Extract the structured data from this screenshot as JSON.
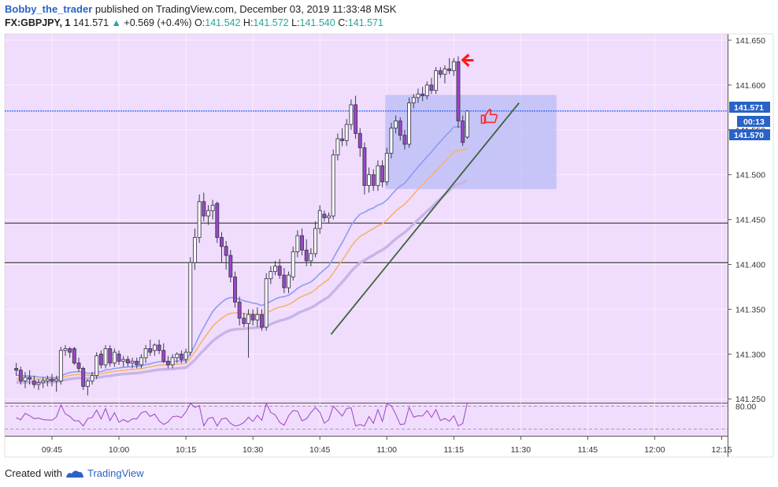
{
  "header": {
    "author": "Bobby_the_trader",
    "published": "published on TradingView.com, December 03, 2019 11:33:48 MSK",
    "symbol": "FX:GBPJPY, 1",
    "last": "141.571",
    "change": "+0.569 (+0.4%)",
    "o_label": "O:",
    "o": "141.542",
    "h_label": "H:",
    "h": "141.572",
    "l_label": "L:",
    "l": "141.540",
    "c_label": "C:",
    "c": "141.571"
  },
  "footer": {
    "created_with": "Created with",
    "brand": "TradingView"
  },
  "price_tags": {
    "last": "141.571",
    "countdown": "00:13",
    "bid": "141.570"
  },
  "colors": {
    "background": "#f0dcfc",
    "bull": "#ffffff",
    "bear": "#9c45c8",
    "ema_fast": "#8c9cf0",
    "ema_mid": "#f5b46e",
    "ema_slow": "#c8b4e6",
    "price_line": "#2962ff",
    "trendline": "#3c643c",
    "zone": "#b9bcf7"
  },
  "chart_data": {
    "type": "candlestick",
    "symbol": "FX:GBPJPY",
    "interval": "1",
    "y_ticks": [
      "141.650",
      "141.600",
      "141.550",
      "141.500",
      "141.450",
      "141.400",
      "141.350",
      "141.300",
      "141.250"
    ],
    "y_range": [
      141.24,
      141.665
    ],
    "x_ticks": [
      {
        "label": "09:45",
        "t": 0
      },
      {
        "label": "10:00",
        "t": 15
      },
      {
        "label": "10:15",
        "t": 30
      },
      {
        "label": "10:30",
        "t": 45
      },
      {
        "label": "10:45",
        "t": 60
      },
      {
        "label": "11:00",
        "t": 75
      },
      {
        "label": "11:15",
        "t": 90
      },
      {
        "label": "11:30",
        "t": 105
      },
      {
        "label": "11:45",
        "t": 120
      },
      {
        "label": "12:00",
        "t": 135
      },
      {
        "label": "12:15",
        "t": 150
      }
    ],
    "note_x": "t = minutes after 09:45",
    "horizontal_lines": [
      141.446,
      141.402
    ],
    "last_price": 141.571,
    "zone": {
      "t_start": 75,
      "t_end": 113,
      "low": 141.484,
      "high": 141.589
    },
    "trendline": {
      "t1": 62.5,
      "p1": 141.322,
      "t2": 104.6,
      "p2": 141.58
    },
    "candles": [
      {
        "t": -8,
        "o": 141.284,
        "h": 141.29,
        "l": 141.276,
        "c": 141.282
      },
      {
        "t": -7,
        "o": 141.282,
        "h": 141.286,
        "l": 141.266,
        "c": 141.27
      },
      {
        "t": -6,
        "o": 141.27,
        "h": 141.28,
        "l": 141.262,
        "c": 141.274
      },
      {
        "t": -5,
        "o": 141.274,
        "h": 141.282,
        "l": 141.266,
        "c": 141.272
      },
      {
        "t": -4,
        "o": 141.27,
        "h": 141.276,
        "l": 141.262,
        "c": 141.266
      },
      {
        "t": -3,
        "o": 141.266,
        "h": 141.272,
        "l": 141.26,
        "c": 141.268
      },
      {
        "t": -2,
        "o": 141.268,
        "h": 141.274,
        "l": 141.262,
        "c": 141.27
      },
      {
        "t": -1,
        "o": 141.27,
        "h": 141.276,
        "l": 141.264,
        "c": 141.272
      },
      {
        "t": 0,
        "o": 141.272,
        "h": 141.278,
        "l": 141.264,
        "c": 141.27
      },
      {
        "t": 1,
        "o": 141.27,
        "h": 141.276,
        "l": 141.258,
        "c": 141.272
      },
      {
        "t": 2,
        "o": 141.27,
        "h": 141.308,
        "l": 141.266,
        "c": 141.304
      },
      {
        "t": 3,
        "o": 141.304,
        "h": 141.31,
        "l": 141.298,
        "c": 141.306
      },
      {
        "t": 4,
        "o": 141.306,
        "h": 141.308,
        "l": 141.296,
        "c": 141.302
      },
      {
        "t": 5,
        "o": 141.306,
        "h": 141.308,
        "l": 141.288,
        "c": 141.29
      },
      {
        "t": 6,
        "o": 141.29,
        "h": 141.296,
        "l": 141.28,
        "c": 141.284
      },
      {
        "t": 7,
        "o": 141.284,
        "h": 141.286,
        "l": 141.26,
        "c": 141.264
      },
      {
        "t": 8,
        "o": 141.264,
        "h": 141.272,
        "l": 141.254,
        "c": 141.27
      },
      {
        "t": 9,
        "o": 141.27,
        "h": 141.28,
        "l": 141.266,
        "c": 141.276
      },
      {
        "t": 10,
        "o": 141.276,
        "h": 141.302,
        "l": 141.272,
        "c": 141.298
      },
      {
        "t": 11,
        "o": 141.3,
        "h": 141.304,
        "l": 141.284,
        "c": 141.288
      },
      {
        "t": 12,
        "o": 141.288,
        "h": 141.31,
        "l": 141.284,
        "c": 141.306
      },
      {
        "t": 13,
        "o": 141.306,
        "h": 141.31,
        "l": 141.286,
        "c": 141.29
      },
      {
        "t": 14,
        "o": 141.29,
        "h": 141.306,
        "l": 141.286,
        "c": 141.302
      },
      {
        "t": 15,
        "o": 141.3,
        "h": 141.304,
        "l": 141.288,
        "c": 141.292
      },
      {
        "t": 16,
        "o": 141.292,
        "h": 141.298,
        "l": 141.286,
        "c": 141.294
      },
      {
        "t": 17,
        "o": 141.294,
        "h": 141.298,
        "l": 141.286,
        "c": 141.29
      },
      {
        "t": 18,
        "o": 141.29,
        "h": 141.296,
        "l": 141.284,
        "c": 141.292
      },
      {
        "t": 19,
        "o": 141.292,
        "h": 141.296,
        "l": 141.284,
        "c": 141.288
      },
      {
        "t": 20,
        "o": 141.288,
        "h": 141.3,
        "l": 141.284,
        "c": 141.296
      },
      {
        "t": 21,
        "o": 141.296,
        "h": 141.31,
        "l": 141.29,
        "c": 141.306
      },
      {
        "t": 22,
        "o": 141.306,
        "h": 141.316,
        "l": 141.298,
        "c": 141.302
      },
      {
        "t": 23,
        "o": 141.304,
        "h": 141.312,
        "l": 141.298,
        "c": 141.31
      },
      {
        "t": 24,
        "o": 141.31,
        "h": 141.316,
        "l": 141.3,
        "c": 141.304
      },
      {
        "t": 25,
        "o": 141.304,
        "h": 141.312,
        "l": 141.29,
        "c": 141.292
      },
      {
        "t": 26,
        "o": 141.292,
        "h": 141.298,
        "l": 141.284,
        "c": 141.288
      },
      {
        "t": 27,
        "o": 141.288,
        "h": 141.3,
        "l": 141.284,
        "c": 141.296
      },
      {
        "t": 28,
        "o": 141.296,
        "h": 141.302,
        "l": 141.29,
        "c": 141.3
      },
      {
        "t": 29,
        "o": 141.3,
        "h": 141.304,
        "l": 141.29,
        "c": 141.294
      },
      {
        "t": 30,
        "o": 141.294,
        "h": 141.306,
        "l": 141.29,
        "c": 141.302
      },
      {
        "t": 31,
        "o": 141.302,
        "h": 141.408,
        "l": 141.298,
        "c": 141.402
      },
      {
        "t": 32,
        "o": 141.402,
        "h": 141.44,
        "l": 141.394,
        "c": 141.43
      },
      {
        "t": 33,
        "o": 141.43,
        "h": 141.478,
        "l": 141.424,
        "c": 141.47
      },
      {
        "t": 34,
        "o": 141.47,
        "h": 141.48,
        "l": 141.448,
        "c": 141.454
      },
      {
        "t": 35,
        "o": 141.454,
        "h": 141.466,
        "l": 141.444,
        "c": 141.46
      },
      {
        "t": 36,
        "o": 141.46,
        "h": 141.472,
        "l": 141.45,
        "c": 141.466
      },
      {
        "t": 37,
        "o": 141.468,
        "h": 141.47,
        "l": 141.424,
        "c": 141.43
      },
      {
        "t": 38,
        "o": 141.43,
        "h": 141.436,
        "l": 141.402,
        "c": 141.42
      },
      {
        "t": 39,
        "o": 141.42,
        "h": 141.426,
        "l": 141.394,
        "c": 141.41
      },
      {
        "t": 40,
        "o": 141.41,
        "h": 141.416,
        "l": 141.38,
        "c": 141.386
      },
      {
        "t": 41,
        "o": 141.386,
        "h": 141.392,
        "l": 141.352,
        "c": 141.358
      },
      {
        "t": 42,
        "o": 141.358,
        "h": 141.364,
        "l": 141.332,
        "c": 141.34
      },
      {
        "t": 43,
        "o": 141.34,
        "h": 141.346,
        "l": 141.33,
        "c": 141.334
      },
      {
        "t": 44,
        "o": 141.334,
        "h": 141.35,
        "l": 141.296,
        "c": 141.344
      },
      {
        "t": 45,
        "o": 141.344,
        "h": 141.35,
        "l": 141.332,
        "c": 141.338
      },
      {
        "t": 46,
        "o": 141.338,
        "h": 141.352,
        "l": 141.33,
        "c": 141.344
      },
      {
        "t": 47,
        "o": 141.344,
        "h": 141.35,
        "l": 141.326,
        "c": 141.33
      },
      {
        "t": 48,
        "o": 141.33,
        "h": 141.39,
        "l": 141.326,
        "c": 141.384
      },
      {
        "t": 49,
        "o": 141.384,
        "h": 141.398,
        "l": 141.378,
        "c": 141.392
      },
      {
        "t": 50,
        "o": 141.392,
        "h": 141.404,
        "l": 141.388,
        "c": 141.398
      },
      {
        "t": 51,
        "o": 141.398,
        "h": 141.406,
        "l": 141.384,
        "c": 141.388
      },
      {
        "t": 52,
        "o": 141.388,
        "h": 141.396,
        "l": 141.368,
        "c": 141.374
      },
      {
        "t": 53,
        "o": 141.374,
        "h": 141.392,
        "l": 141.368,
        "c": 141.388
      },
      {
        "t": 54,
        "o": 141.386,
        "h": 141.42,
        "l": 141.382,
        "c": 141.414
      },
      {
        "t": 55,
        "o": 141.414,
        "h": 141.438,
        "l": 141.408,
        "c": 141.432
      },
      {
        "t": 56,
        "o": 141.432,
        "h": 141.44,
        "l": 141.41,
        "c": 141.416
      },
      {
        "t": 57,
        "o": 141.416,
        "h": 141.428,
        "l": 141.398,
        "c": 141.404
      },
      {
        "t": 58,
        "o": 141.404,
        "h": 141.418,
        "l": 141.398,
        "c": 141.412
      },
      {
        "t": 59,
        "o": 141.412,
        "h": 141.448,
        "l": 141.408,
        "c": 141.44
      },
      {
        "t": 60,
        "o": 141.44,
        "h": 141.466,
        "l": 141.434,
        "c": 141.46
      },
      {
        "t": 61,
        "o": 141.456,
        "h": 141.46,
        "l": 141.448,
        "c": 141.452
      },
      {
        "t": 62,
        "o": 141.452,
        "h": 141.458,
        "l": 141.446,
        "c": 141.454
      },
      {
        "t": 63,
        "o": 141.454,
        "h": 141.528,
        "l": 141.45,
        "c": 141.522
      },
      {
        "t": 64,
        "o": 141.522,
        "h": 141.546,
        "l": 141.516,
        "c": 141.54
      },
      {
        "t": 65,
        "o": 141.54,
        "h": 141.552,
        "l": 141.532,
        "c": 141.538
      },
      {
        "t": 66,
        "o": 141.538,
        "h": 141.562,
        "l": 141.532,
        "c": 141.556
      },
      {
        "t": 67,
        "o": 141.556,
        "h": 141.584,
        "l": 141.55,
        "c": 141.578
      },
      {
        "t": 68,
        "o": 141.578,
        "h": 141.588,
        "l": 141.54,
        "c": 141.546
      },
      {
        "t": 69,
        "o": 141.546,
        "h": 141.552,
        "l": 141.52,
        "c": 141.53
      },
      {
        "t": 70,
        "o": 141.53,
        "h": 141.536,
        "l": 141.478,
        "c": 141.488
      },
      {
        "t": 71,
        "o": 141.488,
        "h": 141.508,
        "l": 141.48,
        "c": 141.5
      },
      {
        "t": 72,
        "o": 141.5,
        "h": 141.506,
        "l": 141.482,
        "c": 141.488
      },
      {
        "t": 73,
        "o": 141.488,
        "h": 141.516,
        "l": 141.482,
        "c": 141.51
      },
      {
        "t": 74,
        "o": 141.51,
        "h": 141.516,
        "l": 141.486,
        "c": 141.492
      },
      {
        "t": 75,
        "o": 141.492,
        "h": 141.53,
        "l": 141.488,
        "c": 141.524
      },
      {
        "t": 76,
        "o": 141.524,
        "h": 141.558,
        "l": 141.518,
        "c": 141.552
      },
      {
        "t": 77,
        "o": 141.552,
        "h": 141.566,
        "l": 141.546,
        "c": 141.56
      },
      {
        "t": 78,
        "o": 141.56,
        "h": 141.564,
        "l": 141.538,
        "c": 141.544
      },
      {
        "t": 79,
        "o": 141.544,
        "h": 141.55,
        "l": 141.528,
        "c": 141.534
      },
      {
        "t": 80,
        "o": 141.534,
        "h": 141.586,
        "l": 141.53,
        "c": 141.58
      },
      {
        "t": 81,
        "o": 141.58,
        "h": 141.59,
        "l": 141.574,
        "c": 141.586
      },
      {
        "t": 82,
        "o": 141.586,
        "h": 141.596,
        "l": 141.58,
        "c": 141.59
      },
      {
        "t": 83,
        "o": 141.59,
        "h": 141.598,
        "l": 141.582,
        "c": 141.588
      },
      {
        "t": 84,
        "o": 141.588,
        "h": 141.604,
        "l": 141.584,
        "c": 141.6
      },
      {
        "t": 85,
        "o": 141.6,
        "h": 141.608,
        "l": 141.59,
        "c": 141.594
      },
      {
        "t": 86,
        "o": 141.594,
        "h": 141.62,
        "l": 141.59,
        "c": 141.616
      },
      {
        "t": 87,
        "o": 141.616,
        "h": 141.62,
        "l": 141.608,
        "c": 141.612
      },
      {
        "t": 88,
        "o": 141.612,
        "h": 141.622,
        "l": 141.602,
        "c": 141.618
      },
      {
        "t": 89,
        "o": 141.618,
        "h": 141.63,
        "l": 141.612,
        "c": 141.616
      },
      {
        "t": 90,
        "o": 141.616,
        "h": 141.63,
        "l": 141.61,
        "c": 141.626
      },
      {
        "t": 91,
        "o": 141.626,
        "h": 141.632,
        "l": 141.552,
        "c": 141.56
      },
      {
        "t": 92,
        "o": 141.56,
        "h": 141.566,
        "l": 141.532,
        "c": 141.536
      },
      {
        "t": 93,
        "o": 141.542,
        "h": 141.572,
        "l": 141.54,
        "c": 141.571
      }
    ]
  }
}
